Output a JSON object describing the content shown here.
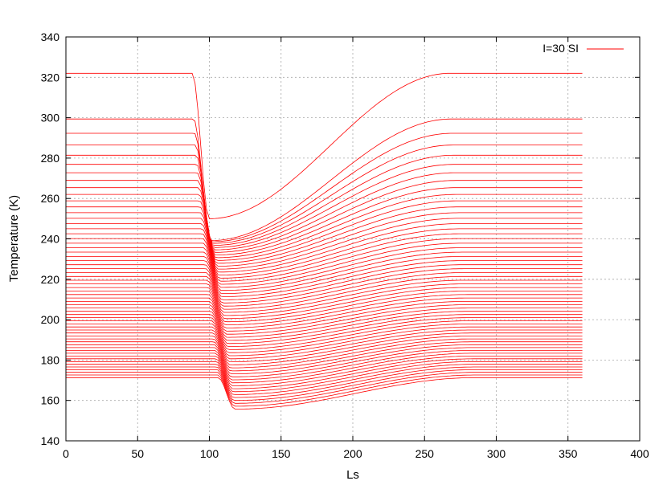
{
  "chart_data": {
    "type": "line",
    "title": "",
    "xlabel": "Ls",
    "ylabel": "Temperature (K)",
    "xlim": [
      0,
      400
    ],
    "ylim": [
      140,
      340
    ],
    "xticks": [
      0,
      50,
      100,
      150,
      200,
      250,
      300,
      350,
      400
    ],
    "yticks": [
      140,
      160,
      180,
      200,
      220,
      240,
      260,
      280,
      300,
      320,
      340
    ],
    "grid": true,
    "legend_position": "top-right",
    "series": [
      {
        "name": "I=30 SI",
        "color": "#ff0000",
        "x_range": [
          0,
          360
        ],
        "ls_min": 100,
        "ls_max": 268,
        "surface_min": 250,
        "surface_max": 322,
        "surface_start": 290,
        "deep_max": 174,
        "deep_start": 153,
        "frost_floor": 146,
        "frost_start": 25,
        "frost_end": 187,
        "curve_count": 60
      }
    ]
  }
}
